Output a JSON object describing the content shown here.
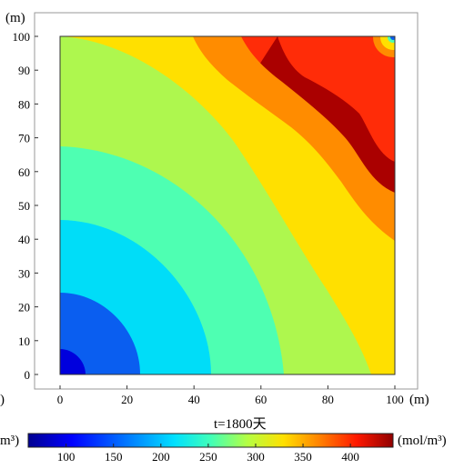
{
  "chart_data": {
    "type": "heatmap",
    "title": "t=1800天",
    "xlabel": "(m)",
    "ylabel": "(m)",
    "xlim": [
      0,
      100
    ],
    "ylim": [
      0,
      100
    ],
    "xticks": [
      0,
      20,
      40,
      60,
      80,
      100
    ],
    "yticks": [
      0,
      10,
      20,
      30,
      40,
      50,
      60,
      70,
      80,
      90,
      100
    ],
    "grid": false,
    "colormap": "jet",
    "colorbar": {
      "orientation": "horizontal",
      "position": "bottom",
      "unit_right": "(mol/m³)",
      "unit_left": "m³)",
      "range": [
        60,
        445
      ],
      "ticks": [
        100,
        150,
        200,
        250,
        300,
        350,
        400
      ]
    },
    "contour_levels": [
      {
        "value": 80,
        "color": "#0000dd"
      },
      {
        "value": 120,
        "color": "#0a5ef0"
      },
      {
        "value": 180,
        "color": "#00ddf8"
      },
      {
        "value": 235,
        "color": "#4effb2"
      },
      {
        "value": 275,
        "color": "#aef74e"
      },
      {
        "value": 315,
        "color": "#ffe000"
      },
      {
        "value": 350,
        "color": "#ff8c00"
      },
      {
        "value": 385,
        "color": "#ff2c08"
      },
      {
        "value": 430,
        "color": "#aa0000"
      }
    ],
    "left_axis_stub": ")"
  }
}
